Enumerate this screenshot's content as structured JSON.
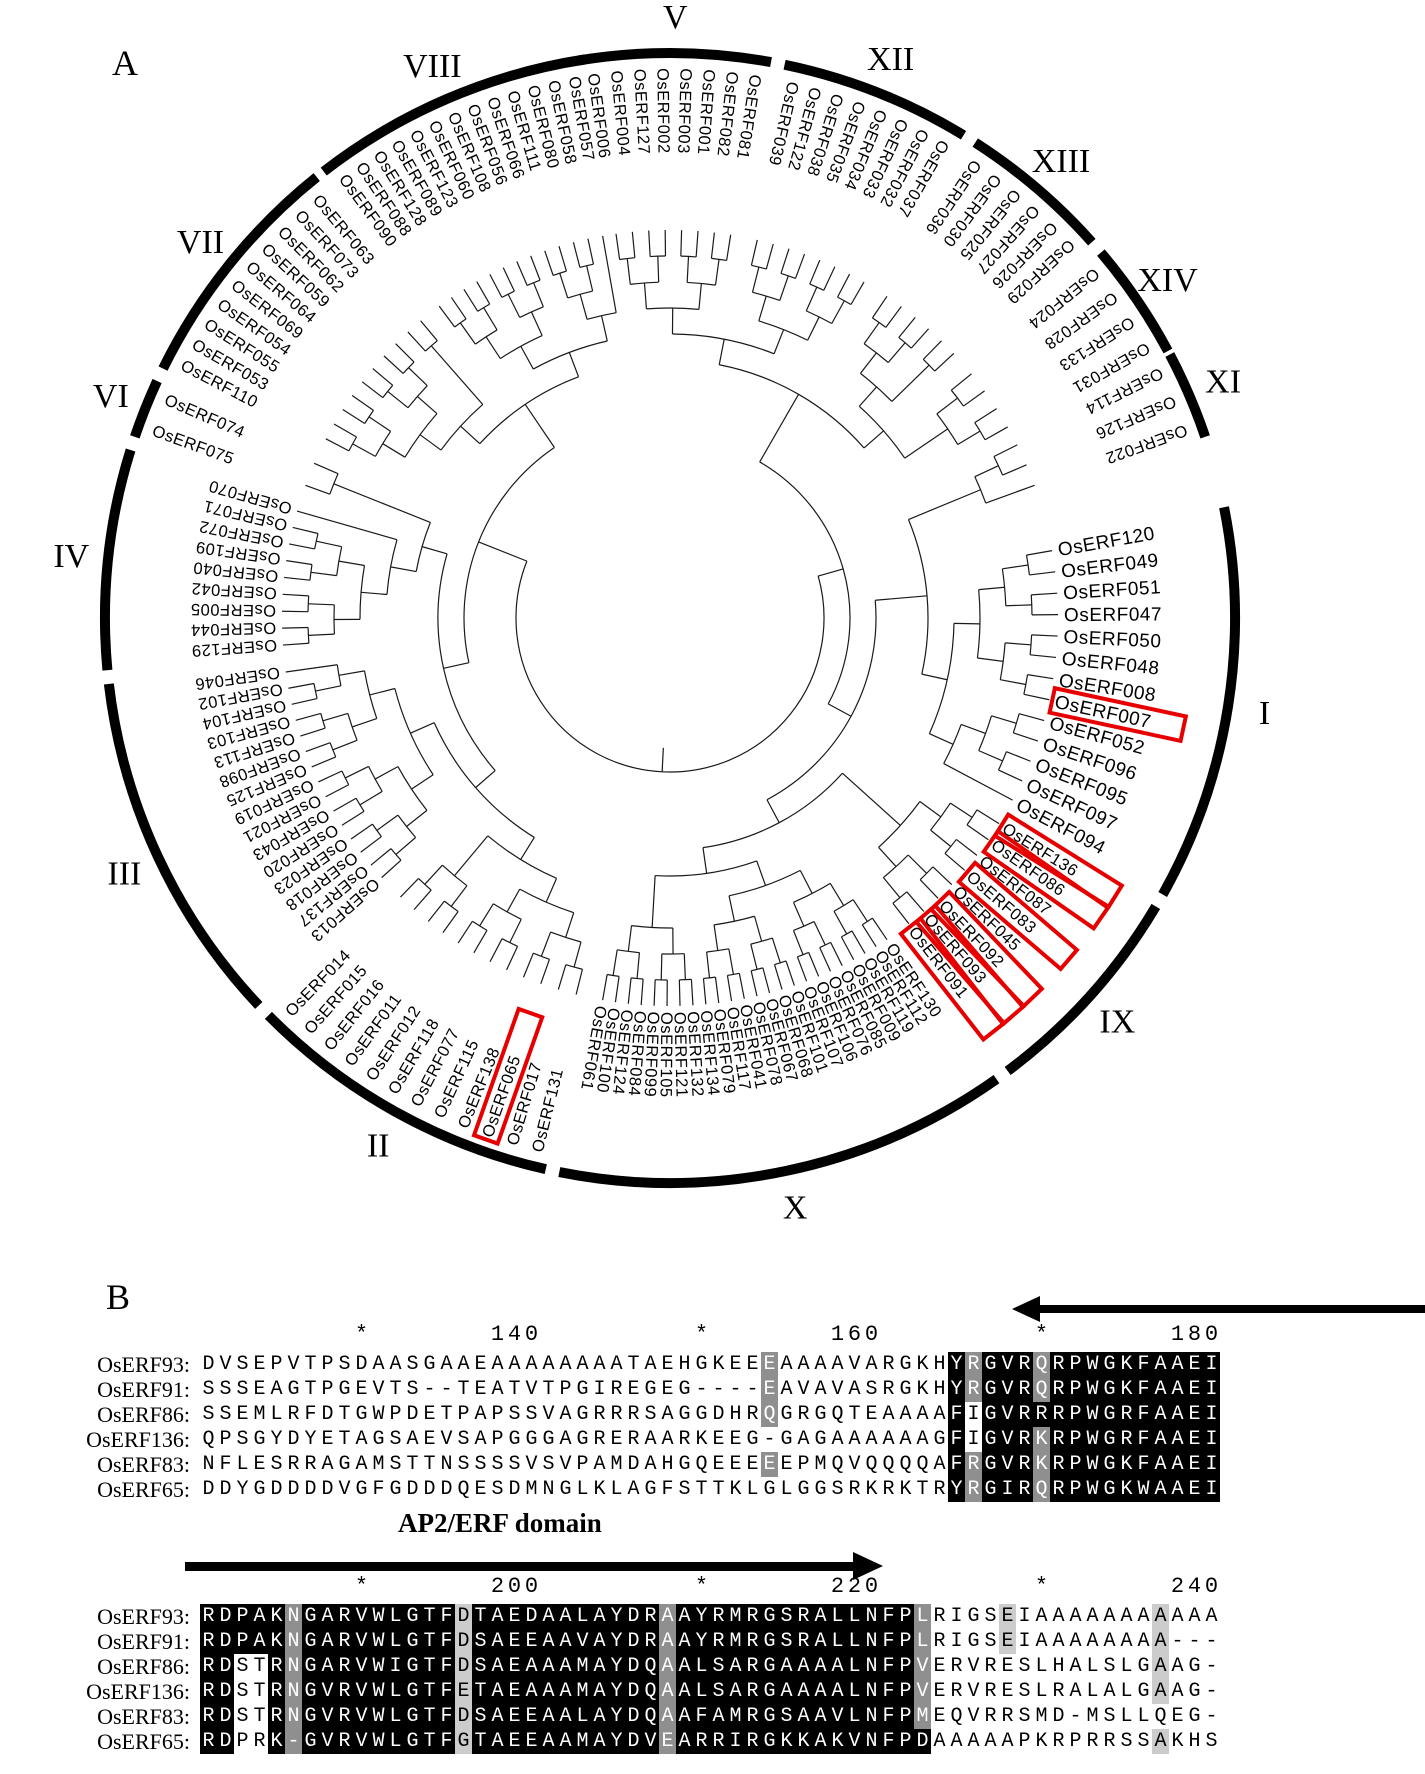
{
  "figure": {
    "panel_a_label": "A",
    "panel_b_label": "B"
  },
  "colors": {
    "highlight_box": "#e60000",
    "branch": "#1a1a1a",
    "conserved_bg": "#000000",
    "similar_bg": "#8f8f8f",
    "weak_bg": "#cccccc"
  },
  "tree": {
    "groups": [
      {
        "numeral": "V",
        "leaves": [
          "OsERF006",
          "OsERF004",
          "OsERF127",
          "OsERF002",
          "OsERF003",
          "OsERF001",
          "OsERF082",
          "OsERF081"
        ]
      },
      {
        "numeral": "XII",
        "leaves": [
          "OsERF039",
          "OsERF122",
          "OsERF038",
          "OsERF035",
          "OsERF034",
          "OsERF033",
          "OsERF032",
          "OsERF037"
        ]
      },
      {
        "numeral": "XIII",
        "leaves": [
          "OsERF036",
          "OsERF030",
          "OsERF025",
          "OsERF027",
          "OsERF026",
          "OsERF029"
        ]
      },
      {
        "numeral": "XIV",
        "leaves": [
          "OsERF024",
          "OsERF028",
          "OsERF133",
          "OsERF031"
        ]
      },
      {
        "numeral": "XI",
        "leaves": [
          "OsERF114",
          "OsERF126",
          "OsERF022"
        ]
      },
      {
        "numeral": "I",
        "leaves": [
          "OsERF120",
          "OsERF049",
          "OsERF051",
          "OsERF047",
          "OsERF050",
          "OsERF048",
          "OsERF008",
          "OsERF007",
          "OsERF052",
          "OsERF096",
          "OsERF095",
          "OsERF097",
          "OsERF094"
        ]
      },
      {
        "numeral": "IX",
        "leaves": [
          "OsERF136",
          "OsERF086",
          "OsERF087",
          "OsERF083",
          "OsERF045",
          "OsERF092",
          "OsERF093",
          "OsERF091"
        ]
      },
      {
        "numeral": "X",
        "leaves": [
          "OsERF130",
          "OsERF112",
          "OsERF119",
          "OsERF009",
          "OsERF085",
          "OsERF076",
          "OsERF106",
          "OsERF107",
          "OsERF101",
          "OsERF068",
          "OsERF067",
          "OsERF078",
          "OsERF041",
          "OsERF117",
          "OsERF079",
          "OsERF134",
          "OsERF132",
          "OsERF121",
          "OsERF105",
          "OsERF099",
          "OsERF084",
          "OsERF124",
          "OsERF100",
          "OsERF061"
        ]
      },
      {
        "numeral": "II",
        "leaves": [
          "OsERF131",
          "OsERF017",
          "OsERF065",
          "OsERF138",
          "OsERF115",
          "OsERF077",
          "OsERF118",
          "OsERF012",
          "OsERF011",
          "OsERF016",
          "OsERF015",
          "OsERF014"
        ]
      },
      {
        "numeral": "III",
        "leaves": [
          "OsERF013",
          "OsERF137",
          "OsERF018",
          "OsERF023",
          "OsERF020",
          "OsERF043",
          "OsERF021",
          "OsERF019",
          "OsERF125",
          "OsERF098",
          "OsERF113",
          "OsERF103",
          "OsERF104",
          "OsERF102",
          "OsERF046"
        ]
      },
      {
        "numeral": "IV",
        "leaves": [
          "OsERF129",
          "OsERF044",
          "OsERF005",
          "OsERF042",
          "OsERF040",
          "OsERF109",
          "OsERF072",
          "OsERF071",
          "OsERF070"
        ]
      },
      {
        "numeral": "VI",
        "leaves": [
          "OsERF075",
          "OsERF074"
        ]
      },
      {
        "numeral": "VII",
        "leaves": [
          "OsERF110",
          "OsERF053",
          "OsERF055",
          "OsERF054",
          "OsERF069",
          "OsERF064",
          "OsERF059",
          "OsERF062",
          "OsERF073",
          "OsERF063"
        ]
      },
      {
        "numeral": "VIII",
        "leaves": [
          "OsERF090",
          "OsERF088",
          "OsERF128",
          "OsERF089",
          "OsERF123",
          "OsERF060",
          "OsERF108",
          "OsERF056",
          "OsERF066",
          "OsERF111",
          "OsERF080",
          "OsERF058",
          "OsERF057"
        ]
      }
    ],
    "boxed_leaves": [
      "OsERF007",
      "OsERF136",
      "OsERF086",
      "OsERF083",
      "OsERF092",
      "OsERF093",
      "OsERF091",
      "OsERF065"
    ]
  },
  "alignment": {
    "domain_label": "AP2/ERF domain",
    "blocks": [
      {
        "ruler": "         *       140         *       160         *       180",
        "rows": [
          {
            "name": "OsERF93:",
            "seq": "DVSEPVTPSDAASGAAEAAAAAAAATAEHGKEEEAAAAVARGKHYRGVRQRPWGKFAAEI",
            "shade": "wwwwwwwwwwwwwwwwwwwwwwwwwwwwwwwwwgwwwwwwwwwwkgkkkgkkkkkkkkkk"
          },
          {
            "name": "OsERF91:",
            "seq": "SSSEAGTPGEVTS--TEATVTPGIREGEG----EAVAVASRGKHYRGVRQRPWGKFAAEI",
            "shade": "wwwwwwwwwwwwwwwwwwwwwwwwwwwwwwwwwgwwwwwwwwwwkgkkkgkkkkkkkkkk"
          },
          {
            "name": "OsERF86:",
            "seq": "SSEMLRFDTGWPDETPAPSSVAGRRRSAGGDHRQGRGQTEAAAAFIGVRRRPWGRFAAEI",
            "shade": "wwwwwwwwwwwwwwwwwwwwwwwwwwwwwwwwwgwwwwwwwwwwkwkkkkkkkkkkkkkk"
          },
          {
            "name": "OsERF136:",
            "seq": "QPSGYDYETAGSAEVSAPGGGAGRERAARKEEG-GAGAAAAAAGFIGVRKRPWGRFAAEI",
            "shade": "wwwwwwwwwwwwwwwwwwwwwwwwwwwwwwwwwwwwwwwwwwwwkwkkkgkkkkkkkkkk"
          },
          {
            "name": "OsERF83:",
            "seq": "NFLESRRAGAMSTTNSSSSVSVPAMDAHGQEEEEEPMQVQQQQAFRGVRKRPWGKFAAEI",
            "shade": "wwwwwwwwwwwwwwwwwwwwwwwwwwwwwwwwwgwwwwwwwwwwkgkkkgkkkkkkkkkk"
          },
          {
            "name": "OsERF65:",
            "seq": "DDYGDDDDVGFGDDDQESDMNGLKLAGFSTTKLGLGGSRKRKTRYRGIRQRPWGKWAAEI",
            "shade": "wwwwwwwwwwwwwwwwwwwwwwwwwwwwwwwwwwwwwwwwwwwwkgkkkgkkkkkkkkkk"
          }
        ]
      },
      {
        "ruler": "         *       200         *       220         *       240",
        "rows": [
          {
            "name": "OsERF93:",
            "seq": "RDPAKNGARVWLGTFDTAEDAALAYDRAAYRMRGSRALLNFPLRIGSEIAAAAAAAAAAA",
            "shade": "kkkkkgkkkkkkkkklkkkkkkkkkkkgkkkkkkkkkkkkkkgwwwwlwwwwwwwwlwww"
          },
          {
            "name": "OsERF91:",
            "seq": "RDPAKNGARVWLGTFDSAEEAAVAYDRAAYRMRGSRALLNFPLRIGSEIAAAAAAAA---",
            "shade": "kkkkkgkkkkkkkkklkkkkkkkkkkkgkkkkkkkkkkkkkkgwwwwlwwwwwwwwlwww"
          },
          {
            "name": "OsERF86:",
            "seq": "RDSTRNGARVWIGTFDSAEAAAMAYDQAALSARGAAAALNFPVERVRESLHALSLGAAG-",
            "shade": "kkwwkgkkkkkkkkklkkkkkkkkkkkgkkkkkkkkkkkkkkgwwwwwwwwwwwwwlwww"
          },
          {
            "name": "OsERF136:",
            "seq": "RDSTRNGVRVWLGTFETAEAAAMAYDQAALSARGAAAALNFPVERVRESLRALALGAAG-",
            "shade": "kkwwkgkkkkkkkkklkkkkkkkkkkkgkkkkkkkkkkkkkkgwwwwwwwwwwwwwlwww"
          },
          {
            "name": "OsERF83:",
            "seq": "RDSTRNGVRVWLGTFDSAEEAALAYDQAAFAMRGSAAVLNFPMEQVRRSMD-MSLLQEG-",
            "shade": "kkwwkgkkkkkkkkklkkkkkkkkkkkgkkkkkkkkkkkkkkgwwwwwwwwwwwwwwwww"
          },
          {
            "name": "OsERF65:",
            "seq": "RDPRK-GVRVWLGTFGTAEEAAMAYDVEARRIRGKKAKVNFPDAAAAAPKRPRRSSAKHS",
            "shade": "kkwwkgkkkkkkkkklkkkkkkkkkkkgkkkkkkkkkkkkkkkwwwwwwwwwwwwwlwww"
          }
        ]
      }
    ]
  }
}
